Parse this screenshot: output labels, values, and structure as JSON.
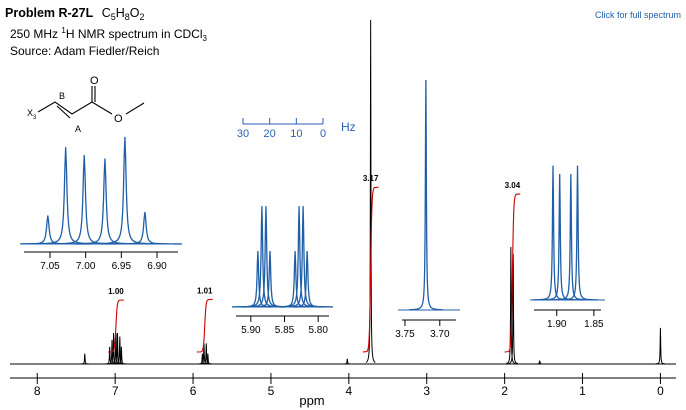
{
  "chart_data": {
    "type": "spectrum",
    "title": "Problem R-27L",
    "formula": [
      "C",
      "5",
      "H",
      "8",
      "O",
      "2"
    ],
    "subtitle": [
      "250 MHz ",
      "1",
      "H NMR spectrum in CDCl",
      "3"
    ],
    "source": "Source: Adam Fiedler/Reich",
    "link": "Click for full spectrum",
    "structure_labels": [
      "X",
      "3",
      "B",
      "A",
      "O",
      "O"
    ],
    "x_label": "ppm",
    "xlim": [
      8.35,
      -0.2
    ],
    "xticks": [
      8,
      7,
      6,
      5,
      4,
      3,
      2,
      1,
      0
    ],
    "ylim": [
      0,
      100
    ],
    "color": "#000000",
    "peaks": {
      "ppm": [
        7.39,
        7.07,
        7.04,
        7.02,
        6.99,
        6.97,
        6.94,
        6.92,
        5.88,
        5.86,
        5.83,
        5.81,
        4.02,
        3.72,
        1.92,
        1.89,
        1.55,
        0
      ],
      "heights": [
        3,
        5,
        7,
        9,
        9,
        9,
        8,
        5,
        3,
        6,
        6,
        3,
        1.5,
        100,
        34,
        32,
        1,
        10.5
      ]
    },
    "integrals": {
      "color": "#cc0000",
      "ppm": [
        6.99,
        5.85,
        3.72,
        1.9
      ],
      "values": [
        1,
        1.01,
        3.17,
        3.04
      ],
      "value_labels": [
        "1.00",
        "1.01",
        "3.17",
        "3.04"
      ]
    },
    "hz_scale": {
      "label": "Hz",
      "xlim": [
        30,
        0
      ],
      "xticks": [
        30,
        20,
        10,
        0
      ],
      "color": "#2b5fb4"
    },
    "insets": [
      {
        "color": "#1f5fa8",
        "xlim": [
          7.092,
          6.865
        ],
        "ylim": [
          0,
          100
        ],
        "xticks": [
          7.05,
          {
            "value": 7.0,
            "label": "7.00"
          },
          6.95,
          {
            "value": 6.9,
            "label": "6.90"
          }
        ],
        "peaks": {
          "ppm": [
            7.053,
            7.028,
            7.002,
            6.973,
            6.945,
            6.917
          ],
          "heights": [
            25,
            85,
            78,
            75,
            94,
            28
          ]
        }
      },
      {
        "color": "#1f5fa8",
        "xlim": [
          5.928,
          5.778
        ],
        "ylim": [
          0,
          100
        ],
        "xticks": [
          {
            "value": 5.9,
            "label": "5.90"
          },
          5.85,
          {
            "value": 5.8,
            "label": "5.80"
          }
        ],
        "peaks": {
          "ppm": [
            5.8896,
            5.8836,
            5.8776,
            5.8716,
            5.8343,
            5.8284,
            5.8224,
            5.8164
          ],
          "heights": [
            50,
            90,
            90,
            50,
            50,
            90,
            90,
            50
          ]
        }
      },
      {
        "color": "#1f5fa8",
        "xlim": [
          3.76,
          3.671
        ],
        "ylim": [
          0,
          100
        ],
        "xticks": [
          3.75,
          {
            "value": 3.7,
            "label": "3.70"
          }
        ],
        "peaks": {
          "ppm": [
            3.72
          ],
          "heights": [
            100
          ]
        }
      },
      {
        "color": "#1f5fa8",
        "xlim": [
          1.936,
          1.835
        ],
        "ylim": [
          0,
          100
        ],
        "xticks": [
          {
            "value": 1.9,
            "label": "1.90"
          },
          1.85
        ],
        "peaks": {
          "ppm": [
            1.905,
            1.896,
            1.881,
            1.872
          ],
          "heights": [
            96,
            90,
            90,
            96
          ]
        }
      }
    ]
  }
}
